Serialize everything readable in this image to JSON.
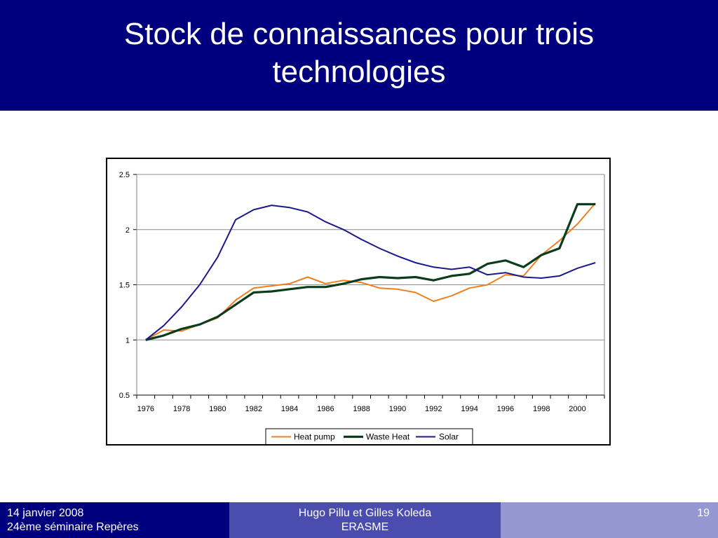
{
  "slide": {
    "title": "Stock de connaissances pour trois technologies"
  },
  "footer": {
    "date": "14 janvier 2008",
    "event": "24ème séminaire Repères",
    "authors": "Hugo Pillu et Gilles Koleda",
    "org": "ERASME",
    "page": "19"
  },
  "chart_data": {
    "type": "line",
    "title": "",
    "xlabel": "",
    "ylabel": "",
    "x": [
      1976,
      1977,
      1978,
      1979,
      1980,
      1981,
      1982,
      1983,
      1984,
      1985,
      1986,
      1987,
      1988,
      1989,
      1990,
      1991,
      1992,
      1993,
      1994,
      1995,
      1996,
      1997,
      1998,
      1999,
      2000,
      2001
    ],
    "x_ticks": [
      "1976",
      "1978",
      "1980",
      "1982",
      "1984",
      "1986",
      "1988",
      "1990",
      "1992",
      "1994",
      "1996",
      "1998",
      "2000"
    ],
    "ylim": [
      0.5,
      2.5
    ],
    "y_ticks": [
      "0.5",
      "1",
      "1.5",
      "2",
      "2.5"
    ],
    "grid": true,
    "legend": "bottom",
    "series": [
      {
        "name": "Heat pump",
        "color": "#f07f1e",
        "values": [
          1.0,
          1.09,
          1.08,
          1.14,
          1.2,
          1.36,
          1.47,
          1.49,
          1.51,
          1.57,
          1.51,
          1.54,
          1.52,
          1.47,
          1.46,
          1.43,
          1.35,
          1.4,
          1.47,
          1.5,
          1.59,
          1.58,
          1.77,
          1.9,
          2.05,
          2.24
        ]
      },
      {
        "name": "Waste Heat",
        "color": "#0b3d1c",
        "values": [
          1.0,
          1.04,
          1.1,
          1.14,
          1.21,
          1.32,
          1.43,
          1.44,
          1.46,
          1.48,
          1.48,
          1.51,
          1.55,
          1.57,
          1.56,
          1.57,
          1.54,
          1.58,
          1.6,
          1.69,
          1.72,
          1.66,
          1.77,
          1.83,
          2.23,
          2.23
        ]
      },
      {
        "name": "Solar",
        "color": "#1a1a8c",
        "values": [
          1.0,
          1.13,
          1.3,
          1.5,
          1.75,
          2.09,
          2.18,
          2.22,
          2.2,
          2.16,
          2.07,
          2.0,
          1.91,
          1.83,
          1.76,
          1.7,
          1.66,
          1.64,
          1.66,
          1.59,
          1.61,
          1.57,
          1.56,
          1.58,
          1.65,
          1.7
        ]
      }
    ]
  }
}
